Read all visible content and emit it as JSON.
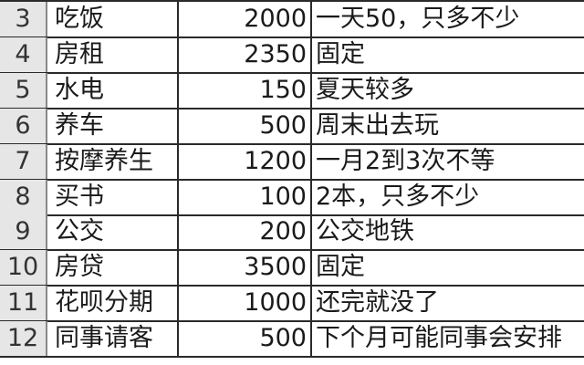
{
  "rows": [
    {
      "num": "3",
      "item": "吃饭",
      "amount": "2000",
      "note": "一天50，只多不少"
    },
    {
      "num": "4",
      "item": "房租",
      "amount": "2350",
      "note": "固定"
    },
    {
      "num": "5",
      "item": "水电",
      "amount": "150",
      "note": "夏天较多"
    },
    {
      "num": "6",
      "item": "养车",
      "amount": "500",
      "note": "周末出去玩"
    },
    {
      "num": "7",
      "item": "按摩养生",
      "amount": "1200",
      "note": "一月2到3次不等"
    },
    {
      "num": "8",
      "item": "买书",
      "amount": "100",
      "note": "2本，只多不少"
    },
    {
      "num": "9",
      "item": "公交",
      "amount": "200",
      "note": "公交地铁"
    },
    {
      "num": "10",
      "item": "房贷",
      "amount": "3500",
      "note": "固定"
    },
    {
      "num": "11",
      "item": "花呗分期",
      "amount": "1000",
      "note": "还完就没了"
    },
    {
      "num": "12",
      "item": "同事请客",
      "amount": "500",
      "note": "下个月可能同事会安排"
    }
  ]
}
